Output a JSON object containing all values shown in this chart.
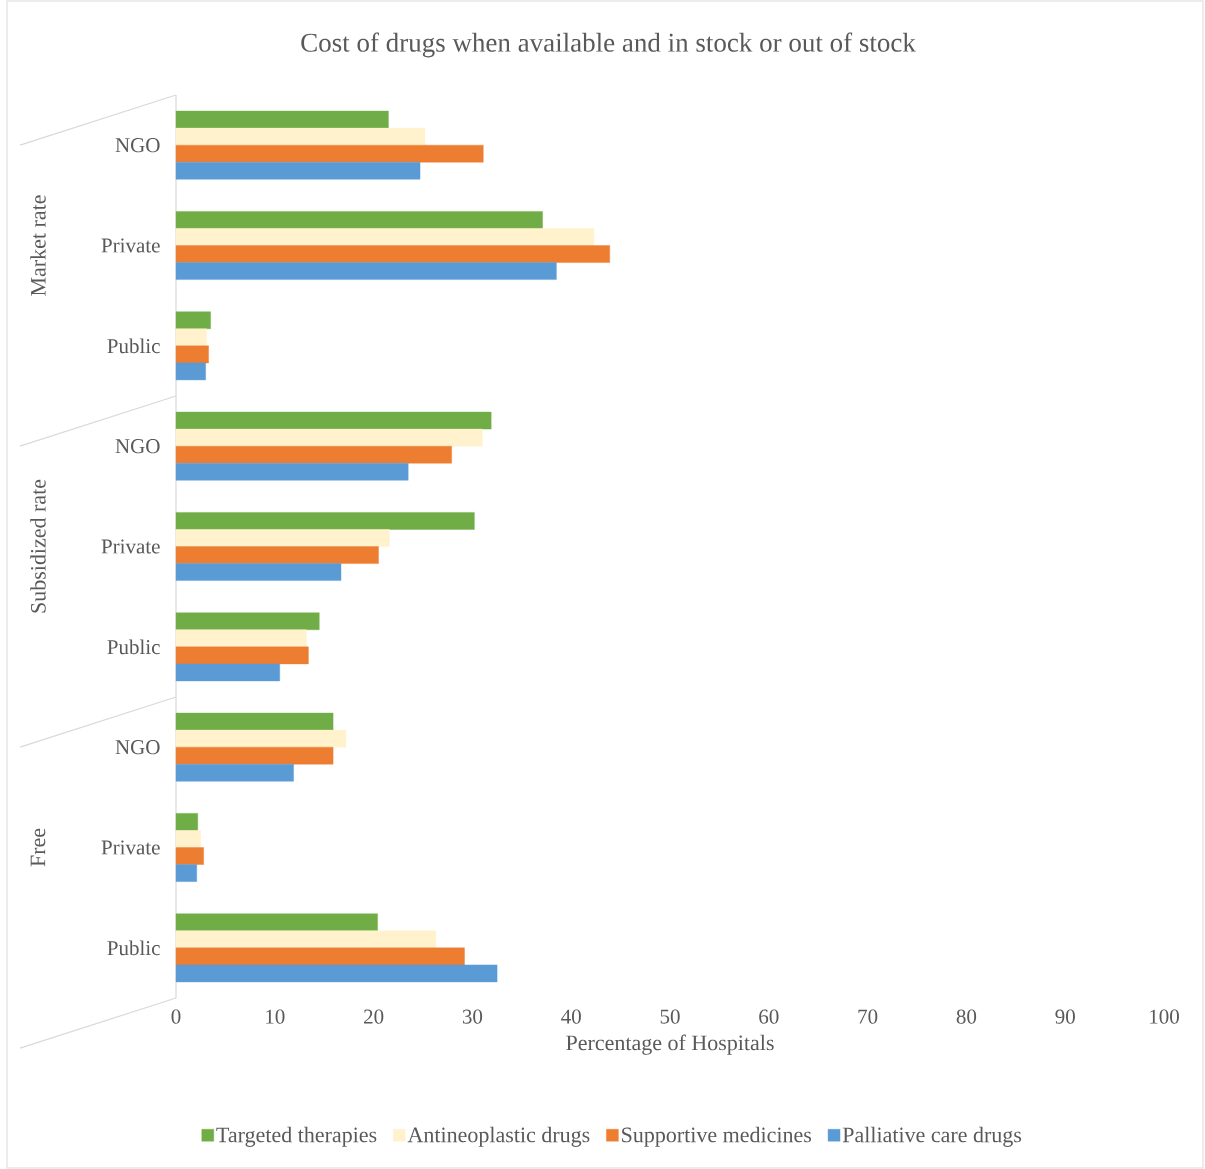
{
  "chart_data": {
    "type": "bar",
    "orientation": "horizontal",
    "title": "Cost of drugs when available and in stock or out of stock",
    "xlabel": "Percentage of Hospitals",
    "categories": [
      "NGO",
      "Private",
      "Public",
      "NGO",
      "Private",
      "Public",
      "NGO",
      "Private",
      "Public"
    ],
    "annotations": [
      "Market rate",
      "Subsidized rate",
      "Free"
    ],
    "series": [
      {
        "name": "Targeted therapies",
        "color": "#70ad47",
        "values": [
          21.5,
          37.1,
          3.5,
          31.9,
          30.2,
          14.5,
          15.9,
          2.2,
          20.4
        ]
      },
      {
        "name": "Antineoplastic drugs",
        "color": "#fff2cc",
        "values": [
          25.2,
          42.3,
          3.1,
          31.0,
          21.6,
          13.2,
          17.2,
          2.5,
          26.3
        ]
      },
      {
        "name": "Supportive medicines",
        "color": "#ed7d31",
        "values": [
          31.1,
          43.9,
          3.3,
          27.9,
          20.5,
          13.4,
          15.9,
          2.8,
          29.2
        ]
      },
      {
        "name": "Palliative care drugs",
        "color": "#5b9bd5",
        "values": [
          24.7,
          38.5,
          3.0,
          23.5,
          16.7,
          10.5,
          11.9,
          2.1,
          32.5
        ]
      }
    ],
    "xlim": [
      0,
      100
    ],
    "xticks": [
      0,
      10,
      20,
      30,
      40,
      50,
      60,
      70,
      80,
      90,
      100
    ],
    "legend": "bottom"
  }
}
